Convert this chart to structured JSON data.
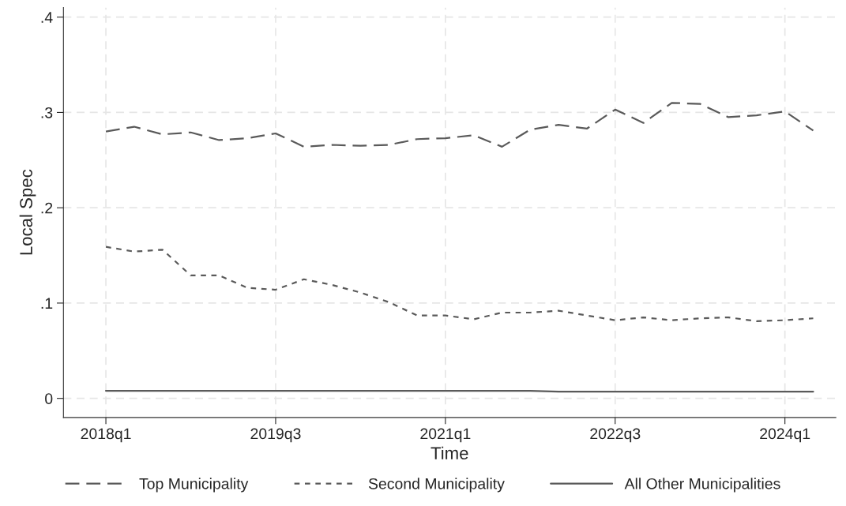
{
  "chart_data": {
    "type": "line",
    "xlabel": "Time",
    "ylabel": "Local Spec",
    "categories": [
      "2018q1",
      null,
      null,
      null,
      null,
      null,
      "2019q3",
      null,
      null,
      null,
      null,
      null,
      "2021q1",
      null,
      null,
      null,
      null,
      null,
      "2022q3",
      null,
      null,
      null,
      null,
      null,
      "2024q1",
      null
    ],
    "series": [
      {
        "name": "Top Municipality",
        "color": "#5a5a5a",
        "line_style": "dashed",
        "values": [
          0.28,
          0.285,
          0.277,
          0.279,
          0.271,
          0.273,
          0.278,
          0.264,
          0.266,
          0.265,
          0.266,
          0.272,
          0.273,
          0.276,
          0.264,
          0.282,
          0.287,
          0.283,
          0.303,
          0.289,
          0.31,
          0.309,
          0.295,
          0.297,
          0.301,
          0.281
        ]
      },
      {
        "name": "Second Municipality",
        "color": "#5a5a5a",
        "line_style": "dotted",
        "values": [
          0.159,
          0.154,
          0.156,
          0.129,
          0.129,
          0.116,
          0.114,
          0.125,
          0.119,
          0.111,
          0.101,
          0.087,
          0.087,
          0.083,
          0.09,
          0.09,
          0.092,
          0.087,
          0.082,
          0.085,
          0.082,
          0.084,
          0.085,
          0.081,
          0.082,
          0.084
        ]
      },
      {
        "name": "All Other Municipalities",
        "color": "#5a5a5a",
        "line_style": "solid",
        "values": [
          0.008,
          0.008,
          0.008,
          0.008,
          0.008,
          0.008,
          0.008,
          0.008,
          0.008,
          0.008,
          0.008,
          0.008,
          0.008,
          0.008,
          0.008,
          0.008,
          0.007,
          0.007,
          0.007,
          0.007,
          0.007,
          0.007,
          0.007,
          0.007,
          0.007,
          0.007
        ]
      }
    ],
    "ylim": [
      -0.02,
      0.41
    ],
    "yticks": [
      0,
      {
        "value": 0.1,
        "label": ".1"
      },
      {
        "value": 0.2,
        "label": ".2"
      },
      {
        "value": 0.3,
        "label": ".3"
      },
      {
        "value": 0.4,
        "label": ".4"
      }
    ],
    "grid": true,
    "legend": "bottom"
  }
}
